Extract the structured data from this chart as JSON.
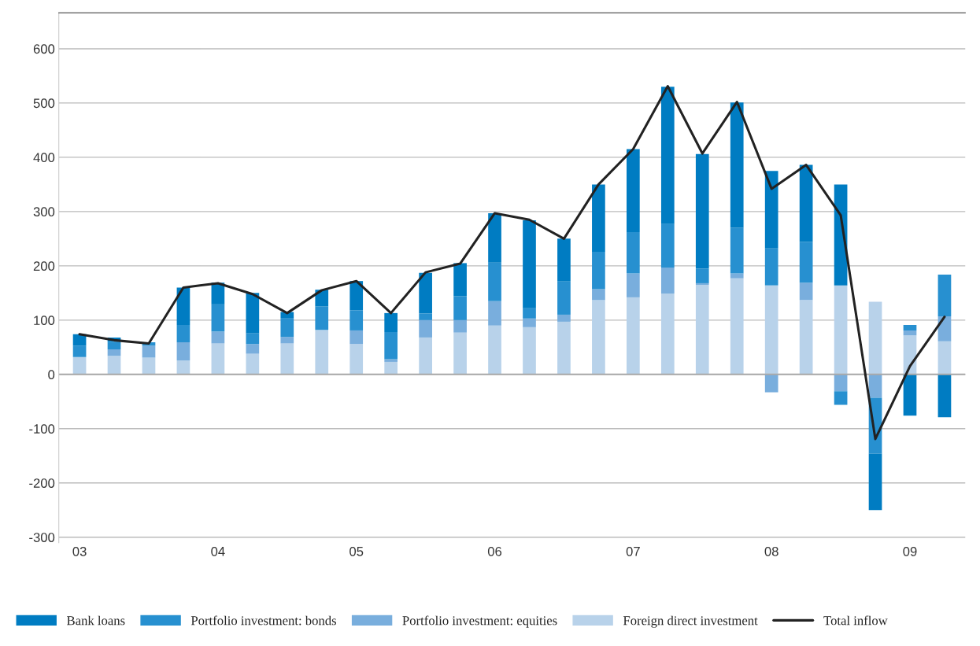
{
  "chart_data": {
    "type": "bar",
    "stacked": true,
    "categories": [
      "03",
      null,
      null,
      null,
      "04",
      null,
      null,
      null,
      "05",
      null,
      null,
      null,
      "06",
      null,
      null,
      null,
      "07",
      null,
      null,
      null,
      "08",
      null,
      null,
      null,
      "09",
      null
    ],
    "series": [
      {
        "name": "Foreign direct investment",
        "color": "#b8d2ea",
        "values": [
          32,
          34,
          31,
          26,
          57,
          38,
          57,
          82,
          56,
          23,
          68,
          77,
          90,
          87,
          97,
          137,
          142,
          149,
          165,
          177,
          164,
          137,
          164,
          134,
          72,
          61
        ]
      },
      {
        "name": "Portfolio investment: equities",
        "color": "#79aedd",
        "values": [
          0,
          12,
          22,
          33,
          22,
          18,
          12,
          0,
          25,
          5,
          32,
          23,
          45,
          16,
          13,
          20,
          44,
          48,
          3,
          9,
          -33,
          32,
          -31,
          -43,
          9,
          46
        ]
      },
      {
        "name": "Portfolio investment: bonds",
        "color": "#2790d0",
        "values": [
          21,
          14,
          6,
          32,
          50,
          20,
          35,
          43,
          37,
          50,
          12,
          44,
          71,
          19,
          61,
          69,
          76,
          80,
          27,
          84,
          68,
          75,
          -25,
          -103,
          10,
          77
        ]
      },
      {
        "name": "Bank loans",
        "color": "#007cc2",
        "values": [
          21,
          8,
          0,
          69,
          40,
          74,
          11,
          31,
          54,
          35,
          75,
          61,
          91,
          162,
          79,
          124,
          153,
          253,
          211,
          231,
          143,
          142,
          186,
          -104,
          -76,
          -79
        ]
      },
      {
        "name": "Total inflow",
        "type": "line",
        "color": "#222222",
        "values": [
          74,
          63,
          57,
          160,
          168,
          148,
          113,
          155,
          172,
          113,
          188,
          204,
          297,
          285,
          250,
          350,
          415,
          531,
          407,
          502,
          342,
          386,
          293,
          -119,
          15,
          106
        ]
      }
    ],
    "ylim": [
      -310,
      666
    ],
    "yticks": [
      -300,
      -200,
      -100,
      0,
      100,
      200,
      300,
      400,
      500,
      600
    ],
    "grid": "y",
    "legend": "bottom"
  }
}
